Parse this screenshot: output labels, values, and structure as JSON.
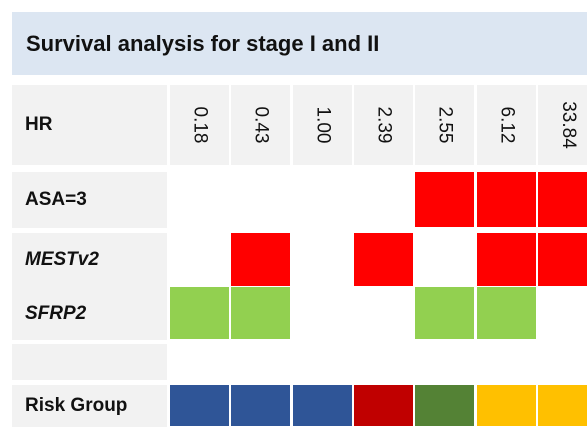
{
  "title": "Survival analysis for stage I and II",
  "header": {
    "label": "HR",
    "values": [
      "0.18",
      "0.43",
      "1.00",
      "2.39",
      "2.55",
      "6.12",
      "33.84"
    ]
  },
  "rows": [
    {
      "label": "ASA=3",
      "italic": false,
      "colors": [
        null,
        null,
        null,
        null,
        "#ff0000",
        "#ff0000",
        "#ff0000"
      ]
    },
    {
      "label": "MESTv2",
      "italic": true,
      "colors": [
        null,
        "#ff0000",
        null,
        "#ff0000",
        null,
        "#ff0000",
        "#ff0000"
      ]
    },
    {
      "label": "SFRP2",
      "italic": true,
      "colors": [
        "#92d050",
        "#92d050",
        null,
        null,
        "#92d050",
        "#92d050",
        null
      ]
    },
    {
      "label": "Risk Group",
      "italic": false,
      "colors": [
        "#2f5597",
        "#2f5597",
        "#2f5597",
        "#c00000",
        "#548235",
        "#ffc000",
        "#ffc000"
      ]
    }
  ]
}
